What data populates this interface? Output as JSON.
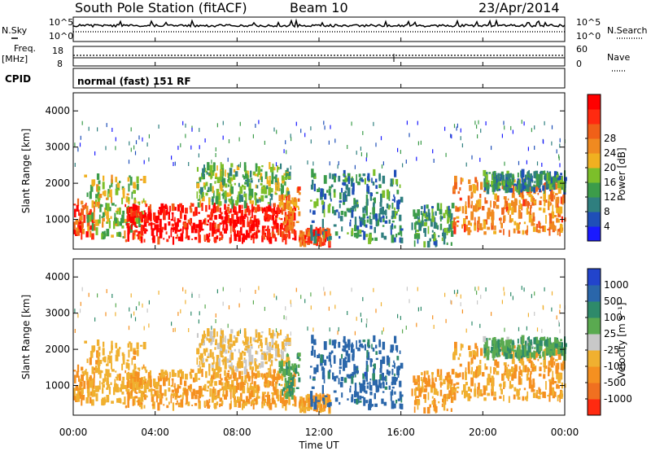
{
  "header": {
    "station": "South Pole Station (fitACF)",
    "beam": "Beam 10",
    "date": "23/Apr/2014"
  },
  "side_labels": {
    "nsky": "N.Sky",
    "nsearch": "N.Search",
    "freq_line1": "Freq.",
    "freq_line2": "[MHz]",
    "nave": "Nave",
    "cpid": "CPID"
  },
  "noise_panel": {
    "left_ticks": [
      "10^5",
      "10^0"
    ],
    "right_ticks": [
      "10^5",
      "10^0"
    ]
  },
  "freq_panel": {
    "left_ticks": [
      "18",
      "8"
    ],
    "right_ticks": [
      "60",
      "0"
    ]
  },
  "cpid_text": "normal (fast) 151 RF",
  "x_axis": {
    "label": "Time UT",
    "ticks": [
      "00:00",
      "04:00",
      "08:00",
      "12:00",
      "16:00",
      "20:00",
      "00:00"
    ],
    "range_hours": [
      0,
      24
    ]
  },
  "y_axis": {
    "label": "Slant Range [km]",
    "ticks": [
      "1000",
      "2000",
      "3000",
      "4000"
    ],
    "range_km": [
      180,
      4500
    ]
  },
  "power_colorbar": {
    "label": "Power [dB]",
    "ticks": [
      "4",
      "8",
      "12",
      "16",
      "20",
      "24",
      "28"
    ],
    "colors": [
      "#1a1aff",
      "#1f4fb8",
      "#2f7f7f",
      "#3c9c4a",
      "#7cbf2a",
      "#f0b020",
      "#f08a20",
      "#f06018",
      "#ff2a10",
      "#ff0000"
    ]
  },
  "velocity_colorbar": {
    "label": "Velocity [m s⁻¹]",
    "ticks": [
      "1000",
      "500",
      "100",
      "25",
      "-25",
      "-100",
      "-500",
      "-1000"
    ],
    "colors": [
      "#2244cc",
      "#2a66aa",
      "#2e8a6a",
      "#5aaa50",
      "#c8c8c8",
      "#f0b030",
      "#f59020",
      "#f07020",
      "#ff2a10"
    ]
  },
  "chart_data": {
    "type": "heatmap",
    "panels": [
      {
        "name": "Power",
        "quantity": "Power [dB]"
      },
      {
        "name": "Velocity",
        "quantity": "Velocity [m s-1]"
      }
    ],
    "x_unit": "hours UT",
    "y_unit": "km",
    "xlim": [
      0,
      24
    ],
    "ylim": [
      180,
      4500
    ],
    "echo_regions": [
      {
        "t0": 0.0,
        "t1": 1.0,
        "r0": 500,
        "r1": 1500,
        "power": 24,
        "velocity": -300
      },
      {
        "t0": 0.5,
        "t1": 3.5,
        "r0": 500,
        "r1": 2200,
        "power": 14,
        "velocity": -200
      },
      {
        "t0": 2.5,
        "t1": 10.8,
        "r0": 400,
        "r1": 1400,
        "power": 28,
        "velocity": -300
      },
      {
        "t0": 6.0,
        "t1": 10.5,
        "r0": 1400,
        "r1": 2500,
        "power": 12,
        "velocity": -80
      },
      {
        "t0": 10.0,
        "t1": 11.0,
        "r0": 700,
        "r1": 1900,
        "power": 20,
        "velocity": 50
      },
      {
        "t0": 11.0,
        "t1": 12.5,
        "r0": 300,
        "r1": 700,
        "power": 24,
        "velocity": -300
      },
      {
        "t0": 11.5,
        "t1": 16.0,
        "r0": 400,
        "r1": 2300,
        "power": 8,
        "velocity": 500
      },
      {
        "t0": 16.5,
        "t1": 18.5,
        "r0": 300,
        "r1": 1400,
        "power": 10,
        "velocity": -300
      },
      {
        "t0": 18.5,
        "t1": 24.0,
        "r0": 600,
        "r1": 2100,
        "power": 20,
        "velocity": -300
      },
      {
        "t0": 20.0,
        "t1": 24.0,
        "r0": 1800,
        "r1": 2300,
        "power": 8,
        "velocity": 50
      }
    ]
  }
}
